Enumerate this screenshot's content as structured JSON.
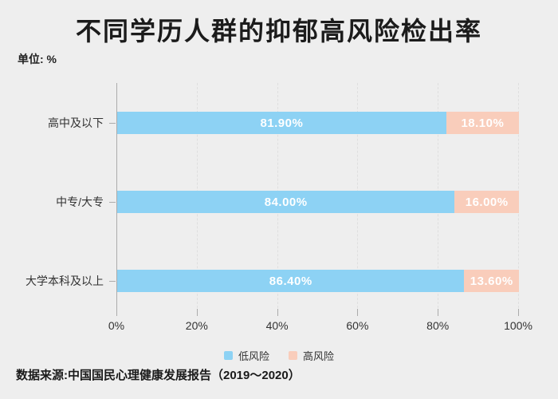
{
  "page": {
    "title": "不同学历人群的抑郁高风险检出率",
    "unit_label": "单位: %",
    "source": "数据来源:中国国民心理健康发展报告（2019～2020）"
  },
  "colors": {
    "background": "#eeeeee",
    "title_text": "#1b1b1b",
    "label_text": "#333333",
    "axis_line": "#ababab",
    "grid_line": "#dfdfdf",
    "value_text": "#ffffff",
    "low_risk": "#8dd2f4",
    "high_risk": "#f9cdbb"
  },
  "chart_data": {
    "type": "bar",
    "orientation": "horizontal",
    "stacked": true,
    "title": "不同学历人群的抑郁高风险检出率",
    "unit": "%",
    "categories": [
      "高中及以下",
      "中专/大专",
      "大学本科及以上"
    ],
    "series": [
      {
        "name": "低风险",
        "color_key": "low_risk",
        "values": [
          81.9,
          84.0,
          86.4
        ]
      },
      {
        "name": "高风险",
        "color_key": "high_risk",
        "values": [
          18.1,
          16.0,
          13.6
        ]
      }
    ],
    "value_label_format": "0.00%",
    "x_axis": {
      "min": 0,
      "max": 100,
      "tick_labels": [
        "0%",
        "20%",
        "40%",
        "60%",
        "80%",
        "100%"
      ],
      "grid": true
    },
    "legend_position": "bottom"
  }
}
